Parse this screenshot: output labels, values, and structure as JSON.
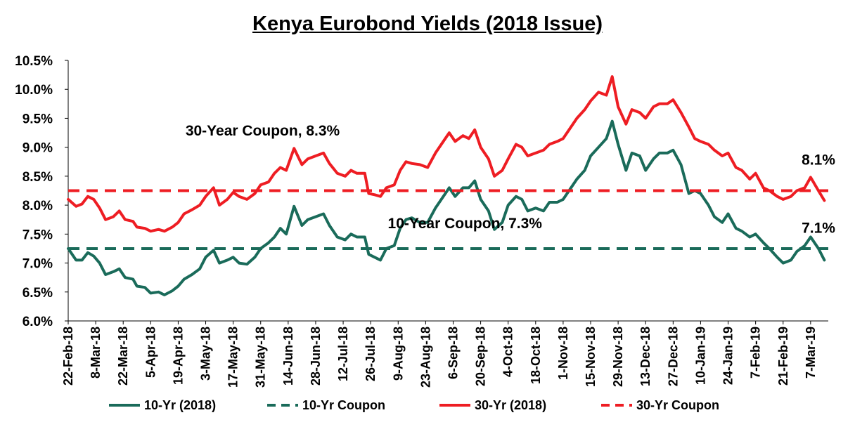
{
  "chart_data": {
    "type": "line",
    "title": "Kenya Eurobond Yields (2018 Issue)",
    "xlabel": "",
    "ylabel": "",
    "ylim": [
      6.0,
      10.5
    ],
    "y_ticks": [
      "6.0%",
      "6.5%",
      "7.0%",
      "7.5%",
      "8.0%",
      "8.5%",
      "9.0%",
      "9.5%",
      "10.0%",
      "10.5%"
    ],
    "x_tick_labels": [
      "22-Feb-18",
      "8-Mar-18",
      "22-Mar-18",
      "5-Apr-18",
      "19-Apr-18",
      "3-May-18",
      "17-May-18",
      "31-May-18",
      "14-Jun-18",
      "28-Jun-18",
      "12-Jul-18",
      "26-Jul-18",
      "9-Aug-18",
      "23-Aug-18",
      "6-Sep-18",
      "20-Sep-18",
      "4-Oct-18",
      "18-Oct-18",
      "1-Nov-18",
      "15-Nov-18",
      "29-Nov-18",
      "13-Dec-18",
      "27-Dec-18",
      "10-Jan-19",
      "24-Jan-19",
      "7-Feb-19",
      "21-Feb-19",
      "7-Mar-19"
    ],
    "grid": false,
    "legend_position": "bottom",
    "series": [
      {
        "name": "10-Yr (2018)",
        "color": "#1a6b5a",
        "style": "solid",
        "points": [
          [
            "22-Feb-18",
            7.25
          ],
          [
            "26-Feb-18",
            7.05
          ],
          [
            "1-Mar-18",
            7.05
          ],
          [
            "4-Mar-18",
            7.18
          ],
          [
            "7-Mar-18",
            7.12
          ],
          [
            "10-Mar-18",
            7.0
          ],
          [
            "13-Mar-18",
            6.8
          ],
          [
            "17-Mar-18",
            6.85
          ],
          [
            "20-Mar-18",
            6.9
          ],
          [
            "23-Mar-18",
            6.75
          ],
          [
            "27-Mar-18",
            6.72
          ],
          [
            "29-Mar-18",
            6.6
          ],
          [
            "2-Apr-18",
            6.58
          ],
          [
            "5-Apr-18",
            6.48
          ],
          [
            "9-Apr-18",
            6.5
          ],
          [
            "12-Apr-18",
            6.45
          ],
          [
            "16-Apr-18",
            6.52
          ],
          [
            "19-Apr-18",
            6.6
          ],
          [
            "22-Apr-18",
            6.72
          ],
          [
            "26-Apr-18",
            6.8
          ],
          [
            "30-Apr-18",
            6.9
          ],
          [
            "3-May-18",
            7.1
          ],
          [
            "7-May-18",
            7.22
          ],
          [
            "10-May-18",
            7.0
          ],
          [
            "14-May-18",
            7.05
          ],
          [
            "17-May-18",
            7.1
          ],
          [
            "20-May-18",
            7.0
          ],
          [
            "24-May-18",
            6.98
          ],
          [
            "28-May-18",
            7.1
          ],
          [
            "31-May-18",
            7.25
          ],
          [
            "4-Jun-18",
            7.35
          ],
          [
            "7-Jun-18",
            7.45
          ],
          [
            "10-Jun-18",
            7.6
          ],
          [
            "13-Jun-18",
            7.5
          ],
          [
            "17-Jun-18",
            7.98
          ],
          [
            "21-Jun-18",
            7.65
          ],
          [
            "24-Jun-18",
            7.75
          ],
          [
            "28-Jun-18",
            7.8
          ],
          [
            "2-Jul-18",
            7.85
          ],
          [
            "5-Jul-18",
            7.65
          ],
          [
            "9-Jul-18",
            7.45
          ],
          [
            "13-Jul-18",
            7.4
          ],
          [
            "16-Jul-18",
            7.5
          ],
          [
            "19-Jul-18",
            7.45
          ],
          [
            "23-Jul-18",
            7.45
          ],
          [
            "25-Jul-18",
            7.15
          ],
          [
            "28-Jul-18",
            7.1
          ],
          [
            "31-Jul-18",
            7.05
          ],
          [
            "3-Aug-18",
            7.25
          ],
          [
            "7-Aug-18",
            7.3
          ],
          [
            "10-Aug-18",
            7.6
          ],
          [
            "13-Aug-18",
            7.75
          ],
          [
            "16-Aug-18",
            7.78
          ],
          [
            "20-Aug-18",
            7.7
          ],
          [
            "24-Aug-18",
            7.7
          ],
          [
            "28-Aug-18",
            7.95
          ],
          [
            "31-Aug-18",
            8.1
          ],
          [
            "4-Sep-18",
            8.3
          ],
          [
            "7-Sep-18",
            8.15
          ],
          [
            "11-Sep-18",
            8.3
          ],
          [
            "14-Sep-18",
            8.3
          ],
          [
            "17-Sep-18",
            8.42
          ],
          [
            "20-Sep-18",
            8.1
          ],
          [
            "24-Sep-18",
            7.9
          ],
          [
            "27-Sep-18",
            7.58
          ],
          [
            "1-Oct-18",
            7.7
          ],
          [
            "4-Oct-18",
            8.0
          ],
          [
            "8-Oct-18",
            8.15
          ],
          [
            "11-Oct-18",
            8.1
          ],
          [
            "14-Oct-18",
            7.9
          ],
          [
            "18-Oct-18",
            7.95
          ],
          [
            "22-Oct-18",
            7.9
          ],
          [
            "25-Oct-18",
            8.05
          ],
          [
            "29-Oct-18",
            8.05
          ],
          [
            "1-Nov-18",
            8.1
          ],
          [
            "5-Nov-18",
            8.3
          ],
          [
            "8-Nov-18",
            8.45
          ],
          [
            "12-Nov-18",
            8.6
          ],
          [
            "15-Nov-18",
            8.85
          ],
          [
            "19-Nov-18",
            9.0
          ],
          [
            "23-Nov-18",
            9.15
          ],
          [
            "26-Nov-18",
            9.45
          ],
          [
            "29-Nov-18",
            9.05
          ],
          [
            "3-Dec-18",
            8.6
          ],
          [
            "6-Dec-18",
            8.9
          ],
          [
            "10-Dec-18",
            8.85
          ],
          [
            "13-Dec-18",
            8.6
          ],
          [
            "17-Dec-18",
            8.8
          ],
          [
            "20-Dec-18",
            8.9
          ],
          [
            "24-Dec-18",
            8.9
          ],
          [
            "27-Dec-18",
            8.95
          ],
          [
            "31-Dec-18",
            8.7
          ],
          [
            "4-Jan-19",
            8.2
          ],
          [
            "7-Jan-19",
            8.25
          ],
          [
            "10-Jan-19",
            8.2
          ],
          [
            "14-Jan-19",
            8.0
          ],
          [
            "17-Jan-19",
            7.8
          ],
          [
            "21-Jan-19",
            7.7
          ],
          [
            "24-Jan-19",
            7.85
          ],
          [
            "28-Jan-19",
            7.6
          ],
          [
            "31-Jan-19",
            7.55
          ],
          [
            "4-Feb-19",
            7.45
          ],
          [
            "7-Feb-19",
            7.5
          ],
          [
            "11-Feb-19",
            7.35
          ],
          [
            "14-Feb-19",
            7.25
          ],
          [
            "18-Feb-19",
            7.1
          ],
          [
            "21-Feb-19",
            7.0
          ],
          [
            "25-Feb-19",
            7.05
          ],
          [
            "28-Feb-19",
            7.2
          ],
          [
            "4-Mar-19",
            7.3
          ],
          [
            "7-Mar-19",
            7.45
          ],
          [
            "11-Mar-19",
            7.25
          ],
          [
            "14-Mar-19",
            7.05
          ]
        ]
      },
      {
        "name": "10-Yr Coupon",
        "color": "#1a6b5a",
        "style": "dashed",
        "constant": 7.25
      },
      {
        "name": "30-Yr (2018)",
        "color": "#ee1d23",
        "style": "solid",
        "points": [
          [
            "22-Feb-18",
            8.1
          ],
          [
            "26-Feb-18",
            7.98
          ],
          [
            "1-Mar-18",
            8.02
          ],
          [
            "4-Mar-18",
            8.15
          ],
          [
            "7-Mar-18",
            8.1
          ],
          [
            "10-Mar-18",
            7.95
          ],
          [
            "13-Mar-18",
            7.75
          ],
          [
            "17-Mar-18",
            7.8
          ],
          [
            "20-Mar-18",
            7.9
          ],
          [
            "23-Mar-18",
            7.75
          ],
          [
            "27-Mar-18",
            7.72
          ],
          [
            "29-Mar-18",
            7.62
          ],
          [
            "2-Apr-18",
            7.6
          ],
          [
            "5-Apr-18",
            7.55
          ],
          [
            "9-Apr-18",
            7.58
          ],
          [
            "12-Apr-18",
            7.55
          ],
          [
            "16-Apr-18",
            7.62
          ],
          [
            "19-Apr-18",
            7.7
          ],
          [
            "22-Apr-18",
            7.85
          ],
          [
            "26-Apr-18",
            7.92
          ],
          [
            "30-Apr-18",
            8.0
          ],
          [
            "3-May-18",
            8.15
          ],
          [
            "7-May-18",
            8.3
          ],
          [
            "10-May-18",
            8.0
          ],
          [
            "14-May-18",
            8.1
          ],
          [
            "17-May-18",
            8.22
          ],
          [
            "20-May-18",
            8.15
          ],
          [
            "24-May-18",
            8.1
          ],
          [
            "28-May-18",
            8.2
          ],
          [
            "31-May-18",
            8.35
          ],
          [
            "4-Jun-18",
            8.4
          ],
          [
            "7-Jun-18",
            8.55
          ],
          [
            "10-Jun-18",
            8.65
          ],
          [
            "13-Jun-18",
            8.6
          ],
          [
            "17-Jun-18",
            8.98
          ],
          [
            "21-Jun-18",
            8.7
          ],
          [
            "24-Jun-18",
            8.8
          ],
          [
            "28-Jun-18",
            8.85
          ],
          [
            "2-Jul-18",
            8.9
          ],
          [
            "5-Jul-18",
            8.72
          ],
          [
            "9-Jul-18",
            8.55
          ],
          [
            "13-Jul-18",
            8.5
          ],
          [
            "16-Jul-18",
            8.6
          ],
          [
            "19-Jul-18",
            8.55
          ],
          [
            "23-Jul-18",
            8.55
          ],
          [
            "25-Jul-18",
            8.2
          ],
          [
            "28-Jul-18",
            8.18
          ],
          [
            "31-Jul-18",
            8.15
          ],
          [
            "3-Aug-18",
            8.3
          ],
          [
            "7-Aug-18",
            8.35
          ],
          [
            "10-Aug-18",
            8.6
          ],
          [
            "13-Aug-18",
            8.75
          ],
          [
            "16-Aug-18",
            8.72
          ],
          [
            "20-Aug-18",
            8.7
          ],
          [
            "24-Aug-18",
            8.65
          ],
          [
            "28-Aug-18",
            8.9
          ],
          [
            "31-Aug-18",
            9.05
          ],
          [
            "4-Sep-18",
            9.25
          ],
          [
            "7-Sep-18",
            9.1
          ],
          [
            "11-Sep-18",
            9.2
          ],
          [
            "14-Sep-18",
            9.15
          ],
          [
            "17-Sep-18",
            9.3
          ],
          [
            "20-Sep-18",
            9.0
          ],
          [
            "24-Sep-18",
            8.8
          ],
          [
            "27-Sep-18",
            8.5
          ],
          [
            "1-Oct-18",
            8.6
          ],
          [
            "4-Oct-18",
            8.8
          ],
          [
            "8-Oct-18",
            9.05
          ],
          [
            "11-Oct-18",
            9.0
          ],
          [
            "14-Oct-18",
            8.85
          ],
          [
            "18-Oct-18",
            8.9
          ],
          [
            "22-Oct-18",
            8.95
          ],
          [
            "25-Oct-18",
            9.05
          ],
          [
            "29-Oct-18",
            9.1
          ],
          [
            "1-Nov-18",
            9.15
          ],
          [
            "5-Nov-18",
            9.35
          ],
          [
            "8-Nov-18",
            9.5
          ],
          [
            "12-Nov-18",
            9.65
          ],
          [
            "15-Nov-18",
            9.8
          ],
          [
            "19-Nov-18",
            9.95
          ],
          [
            "23-Nov-18",
            9.9
          ],
          [
            "26-Nov-18",
            10.22
          ],
          [
            "29-Nov-18",
            9.7
          ],
          [
            "3-Dec-18",
            9.4
          ],
          [
            "6-Dec-18",
            9.65
          ],
          [
            "10-Dec-18",
            9.6
          ],
          [
            "13-Dec-18",
            9.5
          ],
          [
            "17-Dec-18",
            9.7
          ],
          [
            "20-Dec-18",
            9.75
          ],
          [
            "24-Dec-18",
            9.75
          ],
          [
            "27-Dec-18",
            9.82
          ],
          [
            "31-Dec-18",
            9.6
          ],
          [
            "4-Jan-19",
            9.35
          ],
          [
            "7-Jan-19",
            9.15
          ],
          [
            "10-Jan-19",
            9.1
          ],
          [
            "14-Jan-19",
            9.05
          ],
          [
            "17-Jan-19",
            8.95
          ],
          [
            "21-Jan-19",
            8.85
          ],
          [
            "24-Jan-19",
            8.9
          ],
          [
            "28-Jan-19",
            8.65
          ],
          [
            "31-Jan-19",
            8.6
          ],
          [
            "4-Feb-19",
            8.45
          ],
          [
            "7-Feb-19",
            8.55
          ],
          [
            "11-Feb-19",
            8.3
          ],
          [
            "14-Feb-19",
            8.25
          ],
          [
            "18-Feb-19",
            8.15
          ],
          [
            "21-Feb-19",
            8.1
          ],
          [
            "25-Feb-19",
            8.15
          ],
          [
            "28-Feb-19",
            8.25
          ],
          [
            "4-Mar-19",
            8.3
          ],
          [
            "7-Mar-19",
            8.48
          ],
          [
            "11-Mar-19",
            8.25
          ],
          [
            "14-Mar-19",
            8.08
          ]
        ]
      },
      {
        "name": "30-Yr Coupon",
        "color": "#ee1d23",
        "style": "dashed",
        "constant": 8.25
      }
    ],
    "annotations": [
      {
        "text": "30-Year Coupon, 8.3%",
        "x": "1-Jun-18",
        "y": 9.2
      },
      {
        "text": "10-Year Coupon, 7.3%",
        "x": "12-Sep-18",
        "y": 7.6
      },
      {
        "text": "8.1%",
        "x": "11-Mar-19",
        "y": 8.7
      },
      {
        "text": "7.1%",
        "x": "11-Mar-19",
        "y": 7.52
      }
    ]
  }
}
